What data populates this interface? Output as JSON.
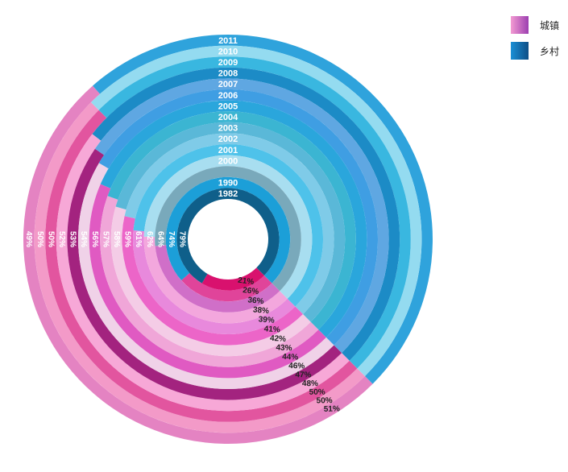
{
  "chart_data": {
    "type": "radial-stacked-bar",
    "title": "",
    "series": [
      {
        "name": "城镇",
        "color": "#e84ea6"
      },
      {
        "name": "乡村",
        "color": "#2d8fd4"
      }
    ],
    "rings": [
      {
        "year": "1982",
        "rural_label": "79%",
        "urban_label": "21%",
        "rural": 79,
        "urban": 21,
        "rural_color": "#0f5f8a",
        "urban_color": "#d9116e"
      },
      {
        "year": "1990",
        "rural_label": "74%",
        "urban_label": "26%",
        "rural": 74,
        "urban": 26,
        "rural_color": "#1c9fd8",
        "urban_color": "#e0449a"
      },
      {
        "year": "",
        "rural_label": "64%",
        "urban_label": "36%",
        "rural": 64,
        "urban": 36,
        "rural_color": "#79a9bb",
        "urban_color": "#d06fc8"
      },
      {
        "year": "2000",
        "rural_label": "62%",
        "urban_label": "38%",
        "rural": 62,
        "urban": 38,
        "rural_color": "#a8def0",
        "urban_color": "#f3a7dd"
      },
      {
        "year": "2001",
        "rural_label": "61%",
        "urban_label": "39%",
        "rural": 61,
        "urban": 39,
        "rural_color": "#4ec2ea",
        "urban_color": "#e889dc"
      },
      {
        "year": "2002",
        "rural_label": "59%",
        "urban_label": "41%",
        "rural": 59,
        "urban": 41,
        "rural_color": "#7fcbe8",
        "urban_color": "#ec65c8"
      },
      {
        "year": "2003",
        "rural_label": "58%",
        "urban_label": "42%",
        "rural": 58,
        "urban": 42,
        "rural_color": "#5ab8d8",
        "urban_color": "#f4cce6"
      },
      {
        "year": "2004",
        "rural_label": "57%",
        "urban_label": "43%",
        "rural": 57,
        "urban": 43,
        "rural_color": "#3bb5d2",
        "urban_color": "#f0a6d8"
      },
      {
        "year": "2005",
        "rural_label": "56%",
        "urban_label": "44%",
        "rural": 56,
        "urban": 44,
        "rural_color": "#2aa6dc",
        "urban_color": "#e05ac2"
      },
      {
        "year": "2006",
        "rural_label": "54%",
        "urban_label": "46%",
        "rural": 54,
        "urban": 46,
        "rural_color": "#3f9ee3",
        "urban_color": "#f0d2e8"
      },
      {
        "year": "2007",
        "rural_label": "53%",
        "urban_label": "47%",
        "rural": 53,
        "urban": 47,
        "rural_color": "#5fa7e2",
        "urban_color": "#a3237f"
      },
      {
        "year": "2008",
        "rural_label": "52%",
        "urban_label": "48%",
        "rural": 52,
        "urban": 48,
        "rural_color": "#1c8bc6",
        "urban_color": "#f7a8d7"
      },
      {
        "year": "2009",
        "rural_label": "50%",
        "urban_label": "50%",
        "rural": 50,
        "urban": 50,
        "rural_color": "#39b7e0",
        "urban_color": "#e2559f"
      },
      {
        "year": "2010",
        "rural_label": "50%",
        "urban_label": "50%",
        "rural": 50,
        "urban": 50,
        "rural_color": "#94dbf0",
        "urban_color": "#f39ac8"
      },
      {
        "year": "2011",
        "rural_label": "49%",
        "urban_label": "51%",
        "rural": 49,
        "urban": 51,
        "rural_color": "#2fa3dc",
        "urban_color": "#e483c2"
      }
    ]
  },
  "legend": {
    "items": [
      {
        "label": "城镇",
        "swatch_from": "#f39ad2",
        "swatch_to": "#9c3fb0"
      },
      {
        "label": "乡村",
        "swatch_from": "#1a8fd6",
        "swatch_to": "#0e4f86"
      }
    ]
  }
}
